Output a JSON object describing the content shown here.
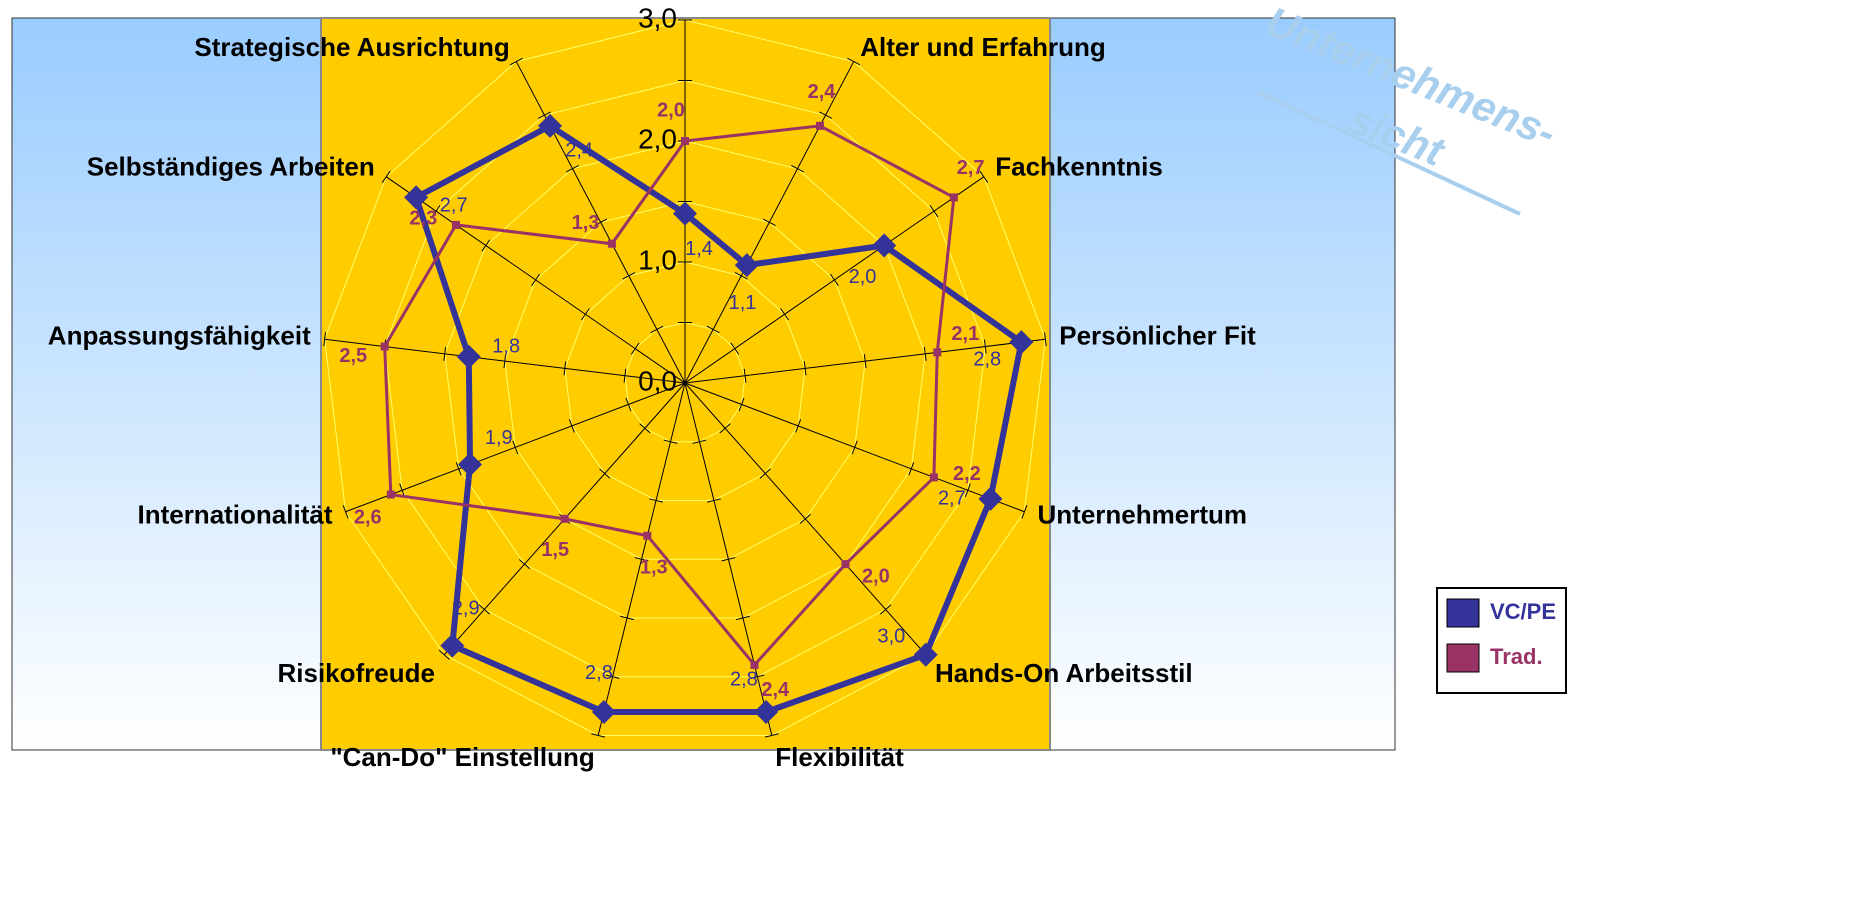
{
  "chart_data": {
    "type": "radar",
    "categories": [
      null,
      "Alter und Erfahrung",
      "Fachkenntnis",
      "Persönlicher Fit",
      "Unternehmertum",
      "Hands-On Arbeitsstil",
      "Flexibilität",
      "\"Can-Do\" Einstellung",
      "Risikofreude",
      "Internationalität",
      "Anpassungsfähigkeit",
      "Selbständiges Arbeiten",
      "Strategische Ausrichtung"
    ],
    "series": [
      {
        "name": "VC/PE",
        "color": "#333399",
        "values": [
          1.4,
          1.1,
          2.0,
          2.8,
          2.7,
          3.0,
          2.8,
          2.8,
          2.9,
          1.9,
          1.8,
          2.7,
          2.4
        ],
        "value_labels": [
          "1,4",
          "1,1",
          "2,0",
          "2,8",
          "2,7",
          "3,0",
          "2,8",
          "2,8",
          "2,9",
          "1,9",
          "1,8",
          "2,7",
          "2,4"
        ]
      },
      {
        "name": "Trad.",
        "color": "#993366",
        "values": [
          2.0,
          2.4,
          2.7,
          2.1,
          2.2,
          2.0,
          2.4,
          1.3,
          1.5,
          2.6,
          2.5,
          2.3,
          1.3
        ],
        "value_labels": [
          "2,0",
          "2,4",
          "2,7",
          "2,1",
          "2,2",
          "2,0",
          "2,4",
          "1,3",
          "1,5",
          "2,6",
          "2,5",
          "2,3",
          "1,3"
        ]
      }
    ],
    "ylim": [
      0,
      3
    ],
    "yticks": [
      {
        "value": 0,
        "label": "0,0"
      },
      {
        "value": 1,
        "label": "1,0"
      },
      {
        "value": 2,
        "label": "2,0"
      },
      {
        "value": 3,
        "label": "3,0"
      }
    ],
    "yticks_minor": [
      0.5,
      1.5,
      2.5
    ],
    "grid": true,
    "legend": "right",
    "watermark": [
      "Unternehmens-",
      "sicht"
    ]
  }
}
